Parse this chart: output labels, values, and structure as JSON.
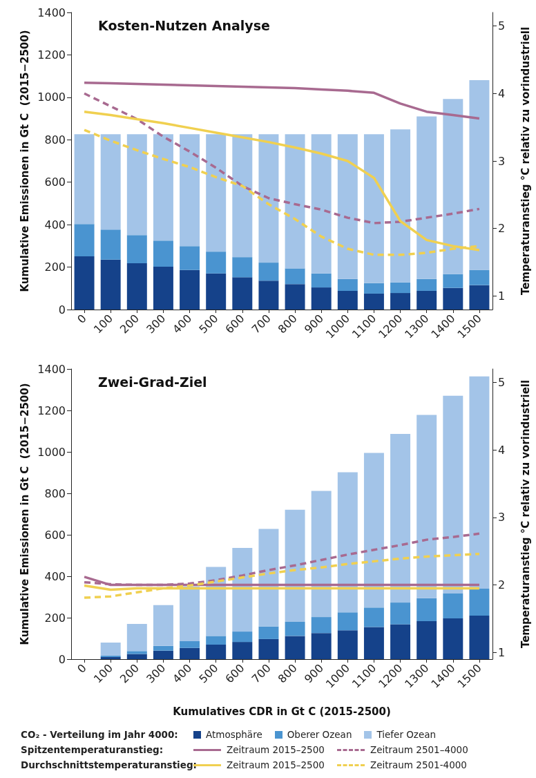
{
  "chart_data": [
    {
      "type": "bar",
      "title": "Kosten-Nutzen Analyse",
      "ylabel": "Kumulative Emissionen in Gt C  (2015−2500)",
      "y2label": "Temperaturanstieg °C relativ zu vorindustriell",
      "categories": [
        "0",
        "100",
        "200",
        "300",
        "400",
        "500",
        "600",
        "700",
        "800",
        "900",
        "1000",
        "1100",
        "1200",
        "1300",
        "1400",
        "1500"
      ],
      "stacked": true,
      "ylim": [
        0,
        1400
      ],
      "yticks": [
        0,
        200,
        400,
        600,
        800,
        1000,
        1200,
        1400
      ],
      "y2lim": [
        0.8,
        5.2
      ],
      "y2ticks": [
        1,
        2,
        3,
        4,
        5
      ],
      "grid": false,
      "marker": "none",
      "series": [
        {
          "color": "#15428a",
          "values": [
            251,
            235,
            218,
            202,
            186,
            170,
            152,
            136,
            120,
            104,
            88,
            75,
            78,
            88,
            102,
            115
          ]
        },
        {
          "color": "#4a94d0",
          "values": [
            152,
            142,
            133,
            123,
            113,
            103,
            95,
            85,
            74,
            66,
            56,
            50,
            50,
            56,
            65,
            72
          ]
        },
        {
          "color": "#a3c4e8",
          "values": [
            423,
            449,
            475,
            501,
            527,
            553,
            579,
            605,
            632,
            656,
            682,
            701,
            721,
            766,
            825,
            894
          ]
        },
        {
          "type": "line",
          "axis": "y2",
          "line_style": "solid",
          "color": "#a86a90",
          "values": [
            4.16,
            4.15,
            4.14,
            4.13,
            4.12,
            4.11,
            4.1,
            4.09,
            4.08,
            4.06,
            4.04,
            4.01,
            3.85,
            3.73,
            3.68,
            3.63
          ]
        },
        {
          "type": "line",
          "axis": "y2",
          "line_style": "dashed",
          "color": "#a86a90",
          "values": [
            4.0,
            3.81,
            3.62,
            3.36,
            3.14,
            2.9,
            2.63,
            2.45,
            2.36,
            2.28,
            2.16,
            2.08,
            2.1,
            2.16,
            2.22,
            2.29
          ]
        },
        {
          "type": "line",
          "axis": "y2",
          "line_style": "solid",
          "color": "#f0d050",
          "values": [
            3.73,
            3.68,
            3.62,
            3.56,
            3.49,
            3.42,
            3.35,
            3.28,
            3.2,
            3.11,
            3.0,
            2.75,
            2.11,
            1.83,
            1.74,
            1.68
          ]
        },
        {
          "type": "line",
          "axis": "y2",
          "line_style": "dashed",
          "color": "#f0d050",
          "values": [
            3.46,
            3.3,
            3.16,
            3.03,
            2.91,
            2.76,
            2.63,
            2.36,
            2.14,
            1.88,
            1.7,
            1.61,
            1.61,
            1.64,
            1.7,
            1.74
          ]
        }
      ]
    },
    {
      "type": "bar",
      "title": "Zwei-Grad-Ziel",
      "xlabel": "Kumulatives CDR in Gt C (2015-2500)",
      "ylabel": "Kumulative Emissionen in Gt C  (2015−2500)",
      "y2label": "Temperaturanstieg °C relativ zu vorindustriell",
      "categories": [
        "0",
        "100",
        "200",
        "300",
        "400",
        "500",
        "600",
        "700",
        "800",
        "900",
        "1000",
        "1100",
        "1200",
        "1300",
        "1400",
        "1500"
      ],
      "stacked": true,
      "ylim": [
        0,
        1400
      ],
      "yticks": [
        0,
        200,
        400,
        600,
        800,
        1000,
        1200,
        1400
      ],
      "y2lim": [
        0.9,
        5.2
      ],
      "y2ticks": [
        1,
        2,
        3,
        4,
        5
      ],
      "grid": false,
      "marker": "none",
      "legend": "bottom",
      "annotations": [
        "CO₂ - Verteilung im Jahr 4000:",
        "Spitzentemperaturanstieg:",
        "Durchschnittstemperaturanstieg:"
      ],
      "series": [
        {
          "name": "Atmosphäre",
          "color": "#15428a",
          "values": [
            null,
            10,
            25,
            41,
            54,
            70,
            83,
            97,
            112,
            126,
            139,
            155,
            168,
            183,
            197,
            210
          ]
        },
        {
          "name": "Oberer Ozean",
          "color": "#4a94d0",
          "values": [
            null,
            7,
            14,
            23,
            33,
            42,
            50,
            61,
            68,
            77,
            87,
            94,
            105,
            111,
            120,
            130
          ]
        },
        {
          "name": "Tiefer Ozean",
          "color": "#a3c4e8",
          "values": [
            null,
            63,
            131,
            197,
            264,
            333,
            404,
            470,
            541,
            609,
            676,
            746,
            814,
            884,
            954,
            1024
          ]
        },
        {
          "name": "Zeitraum 2015–2500",
          "type": "line",
          "axis": "y2",
          "line_style": "solid",
          "color": "#a86a90",
          "values": [
            2.12,
            2.0,
            2.0,
            2.0,
            2.0,
            2.0,
            2.0,
            2.0,
            2.0,
            2.0,
            2.0,
            2.0,
            2.0,
            2.0,
            2.0,
            2.0
          ]
        },
        {
          "name": "Zeitraum 2501–4000",
          "type": "line",
          "axis": "y2",
          "line_style": "dashed",
          "color": "#a86a90",
          "values": [
            2.04,
            2.01,
            2.0,
            2.0,
            2.02,
            2.07,
            2.14,
            2.22,
            2.29,
            2.37,
            2.45,
            2.52,
            2.59,
            2.67,
            2.71,
            2.76
          ]
        },
        {
          "name": "Zeitraum 2015–2500",
          "type": "line",
          "axis": "y2",
          "line_style": "solid",
          "color": "#f0d050",
          "values": [
            1.99,
            1.93,
            1.95,
            1.95,
            1.95,
            1.95,
            1.95,
            1.95,
            1.95,
            1.95,
            1.95,
            1.95,
            1.95,
            1.95,
            1.95,
            1.95
          ]
        },
        {
          "name": "Zeitraum 2501-4000",
          "type": "line",
          "axis": "y2",
          "line_style": "dashed",
          "color": "#f0d050",
          "values": [
            1.81,
            1.83,
            1.89,
            1.95,
            1.99,
            2.05,
            2.11,
            2.17,
            2.22,
            2.26,
            2.31,
            2.35,
            2.39,
            2.42,
            2.44,
            2.46
          ]
        }
      ]
    }
  ]
}
